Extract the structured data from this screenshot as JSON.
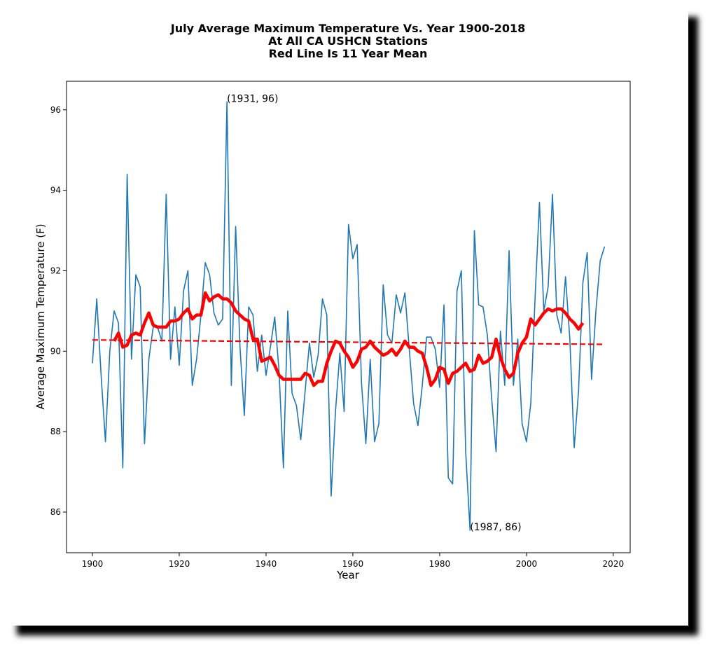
{
  "chart_data": {
    "type": "line",
    "title": "July Average Maximum Temperature Vs. Year 1900-2018",
    "subtitle": [
      "At All CA USHCN Stations",
      "Red Line Is 11 Year Mean"
    ],
    "x_label": "Year",
    "y_label": "Average Maximum Temperature (F)",
    "xlim": [
      1894.03,
      2023.9
    ],
    "ylim": [
      84.99,
      96.71
    ],
    "xticks": [
      1900,
      1920,
      1940,
      1960,
      1980,
      2000,
      2020
    ],
    "yticks": [
      86,
      88,
      90,
      92,
      94,
      96
    ],
    "grid": false,
    "x": [
      1900,
      1901,
      1902,
      1903,
      1904,
      1905,
      1906,
      1907,
      1908,
      1909,
      1910,
      1911,
      1912,
      1913,
      1914,
      1915,
      1916,
      1917,
      1918,
      1919,
      1920,
      1921,
      1922,
      1923,
      1924,
      1925,
      1926,
      1927,
      1928,
      1929,
      1930,
      1931,
      1932,
      1933,
      1934,
      1935,
      1936,
      1937,
      1938,
      1939,
      1940,
      1941,
      1942,
      1943,
      1944,
      1945,
      1946,
      1947,
      1948,
      1949,
      1950,
      1951,
      1952,
      1953,
      1954,
      1955,
      1956,
      1957,
      1958,
      1959,
      1960,
      1961,
      1962,
      1963,
      1964,
      1965,
      1966,
      1967,
      1968,
      1969,
      1970,
      1971,
      1972,
      1973,
      1974,
      1975,
      1976,
      1977,
      1978,
      1979,
      1980,
      1981,
      1982,
      1983,
      1984,
      1985,
      1986,
      1987,
      1988,
      1989,
      1990,
      1991,
      1992,
      1993,
      1994,
      1995,
      1996,
      1997,
      1998,
      1999,
      2000,
      2001,
      2002,
      2003,
      2004,
      2005,
      2006,
      2007,
      2008,
      2009,
      2010,
      2011,
      2012,
      2013,
      2014,
      2015,
      2016,
      2017,
      2018
    ],
    "series": [
      {
        "color": "#1f77b4",
        "width": 1.6,
        "values": [
          89.7,
          91.3,
          89.4,
          87.75,
          90.0,
          91.0,
          90.7,
          87.1,
          94.4,
          89.8,
          91.9,
          91.6,
          87.7,
          89.8,
          90.6,
          90.6,
          90.25,
          93.9,
          89.8,
          91.1,
          89.65,
          91.5,
          92.0,
          89.15,
          89.8,
          90.9,
          92.2,
          91.9,
          90.95,
          90.65,
          90.8,
          96.2,
          89.15,
          93.1,
          90.1,
          88.4,
          91.1,
          90.9,
          89.5,
          90.4,
          89.4,
          90.1,
          90.85,
          89.5,
          87.1,
          91.0,
          88.95,
          88.65,
          87.8,
          89.0,
          90.2,
          89.35,
          89.9,
          91.3,
          90.9,
          86.4,
          88.5,
          89.95,
          88.5,
          93.15,
          92.3,
          92.65,
          89.2,
          87.7,
          89.8,
          87.75,
          88.2,
          91.65,
          90.4,
          90.2,
          91.4,
          90.95,
          91.45,
          90.05,
          88.7,
          88.15,
          89.15,
          90.35,
          90.35,
          90.05,
          89.1,
          91.15,
          86.85,
          86.7,
          91.5,
          92.0,
          87.5,
          85.55,
          93.0,
          91.15,
          91.1,
          90.4,
          88.8,
          87.5,
          90.5,
          89.15,
          92.5,
          89.15,
          90.3,
          88.2,
          87.75,
          88.7,
          91.35,
          93.7,
          91.0,
          91.6,
          93.9,
          90.9,
          90.45,
          91.85,
          90.3,
          87.6,
          89.0,
          91.7,
          92.45,
          89.3,
          91.0,
          92.25,
          92.6
        ]
      },
      {
        "color": "#ff0000",
        "width": 4.5,
        "values": [
          null,
          null,
          null,
          null,
          null,
          90.25,
          90.45,
          90.1,
          90.15,
          90.4,
          90.45,
          90.4,
          90.7,
          90.95,
          90.65,
          90.6,
          90.6,
          90.6,
          90.75,
          90.75,
          90.8,
          90.95,
          91.05,
          90.8,
          90.9,
          90.9,
          91.45,
          91.25,
          91.35,
          91.4,
          91.3,
          91.3,
          91.2,
          91.0,
          90.9,
          90.8,
          90.75,
          90.3,
          90.3,
          89.75,
          89.8,
          89.85,
          89.65,
          89.4,
          89.3,
          89.3,
          89.3,
          89.3,
          89.3,
          89.45,
          89.4,
          89.15,
          89.25,
          89.25,
          89.7,
          90.0,
          90.25,
          90.2,
          90.0,
          89.85,
          89.6,
          89.75,
          90.05,
          90.1,
          90.25,
          90.1,
          90.0,
          89.9,
          89.95,
          90.05,
          89.9,
          90.05,
          90.25,
          90.1,
          90.1,
          90.0,
          89.95,
          89.6,
          89.15,
          89.3,
          89.6,
          89.55,
          89.2,
          89.45,
          89.5,
          89.6,
          89.7,
          89.5,
          89.55,
          89.9,
          89.7,
          89.75,
          89.85,
          90.3,
          89.85,
          89.55,
          89.35,
          89.45,
          89.95,
          90.2,
          90.35,
          90.8,
          90.65,
          90.8,
          90.95,
          91.05,
          91.0,
          91.05,
          91.05,
          90.95,
          90.8,
          90.7,
          90.55,
          90.7,
          null,
          null,
          null,
          null,
          null
        ]
      }
    ],
    "trend_line": {
      "color": "#ff0000",
      "dashed": true,
      "x": [
        1900,
        2018
      ],
      "values": [
        90.28,
        90.17
      ]
    },
    "annotations": [
      {
        "text": "(1931, 96)",
        "x": 1931,
        "y": 96.2
      },
      {
        "text": "(1987, 86)",
        "x": 1987,
        "y": 85.55
      }
    ]
  }
}
